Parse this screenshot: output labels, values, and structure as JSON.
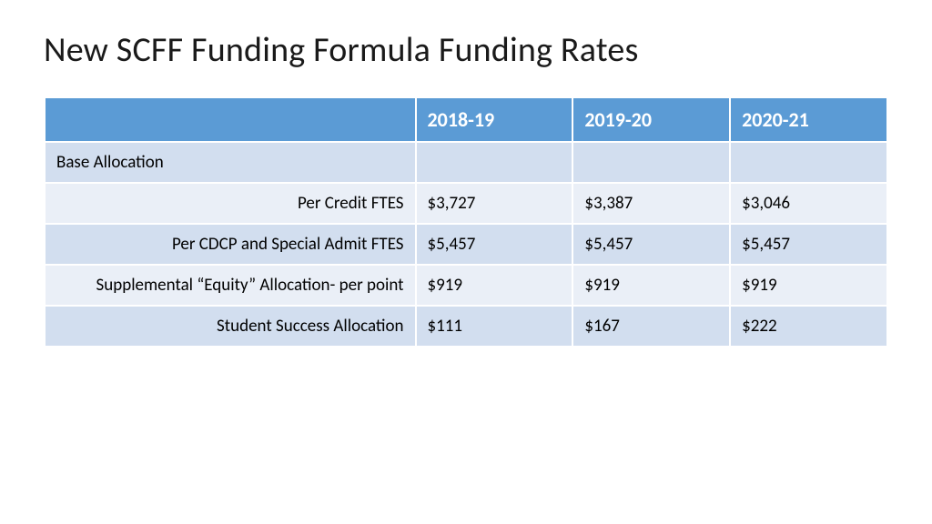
{
  "title": "New SCFF Funding Formula Funding Rates",
  "table": {
    "type": "table",
    "header_bg": "#5b9bd5",
    "header_text_color": "#ffffff",
    "band_a_bg": "#d2deef",
    "band_b_bg": "#eaeff7",
    "border_color": "#ffffff",
    "title_fontsize": 38,
    "header_fontsize": 22,
    "cell_fontsize": 19,
    "columns": [
      "",
      "2018-19",
      "2019-20",
      "2020-21"
    ],
    "column_widths_pct": [
      44,
      18.66,
      18.66,
      18.66
    ],
    "rows": [
      {
        "label": "Base Allocation",
        "values": [
          "",
          "",
          ""
        ],
        "section": true,
        "band": "a"
      },
      {
        "label": "Per Credit FTES",
        "values": [
          "$3,727",
          "$3,387",
          "$3,046"
        ],
        "section": false,
        "band": "b"
      },
      {
        "label": "Per CDCP and Special Admit FTES",
        "values": [
          "$5,457",
          "$5,457",
          "$5,457"
        ],
        "section": false,
        "band": "a"
      },
      {
        "label": "Supplemental “Equity” Allocation- per point",
        "values": [
          "$919",
          "$919",
          "$919"
        ],
        "section": false,
        "band": "b"
      },
      {
        "label": "Student Success Allocation",
        "values": [
          "$111",
          "$167",
          "$222"
        ],
        "section": false,
        "band": "a"
      }
    ]
  }
}
